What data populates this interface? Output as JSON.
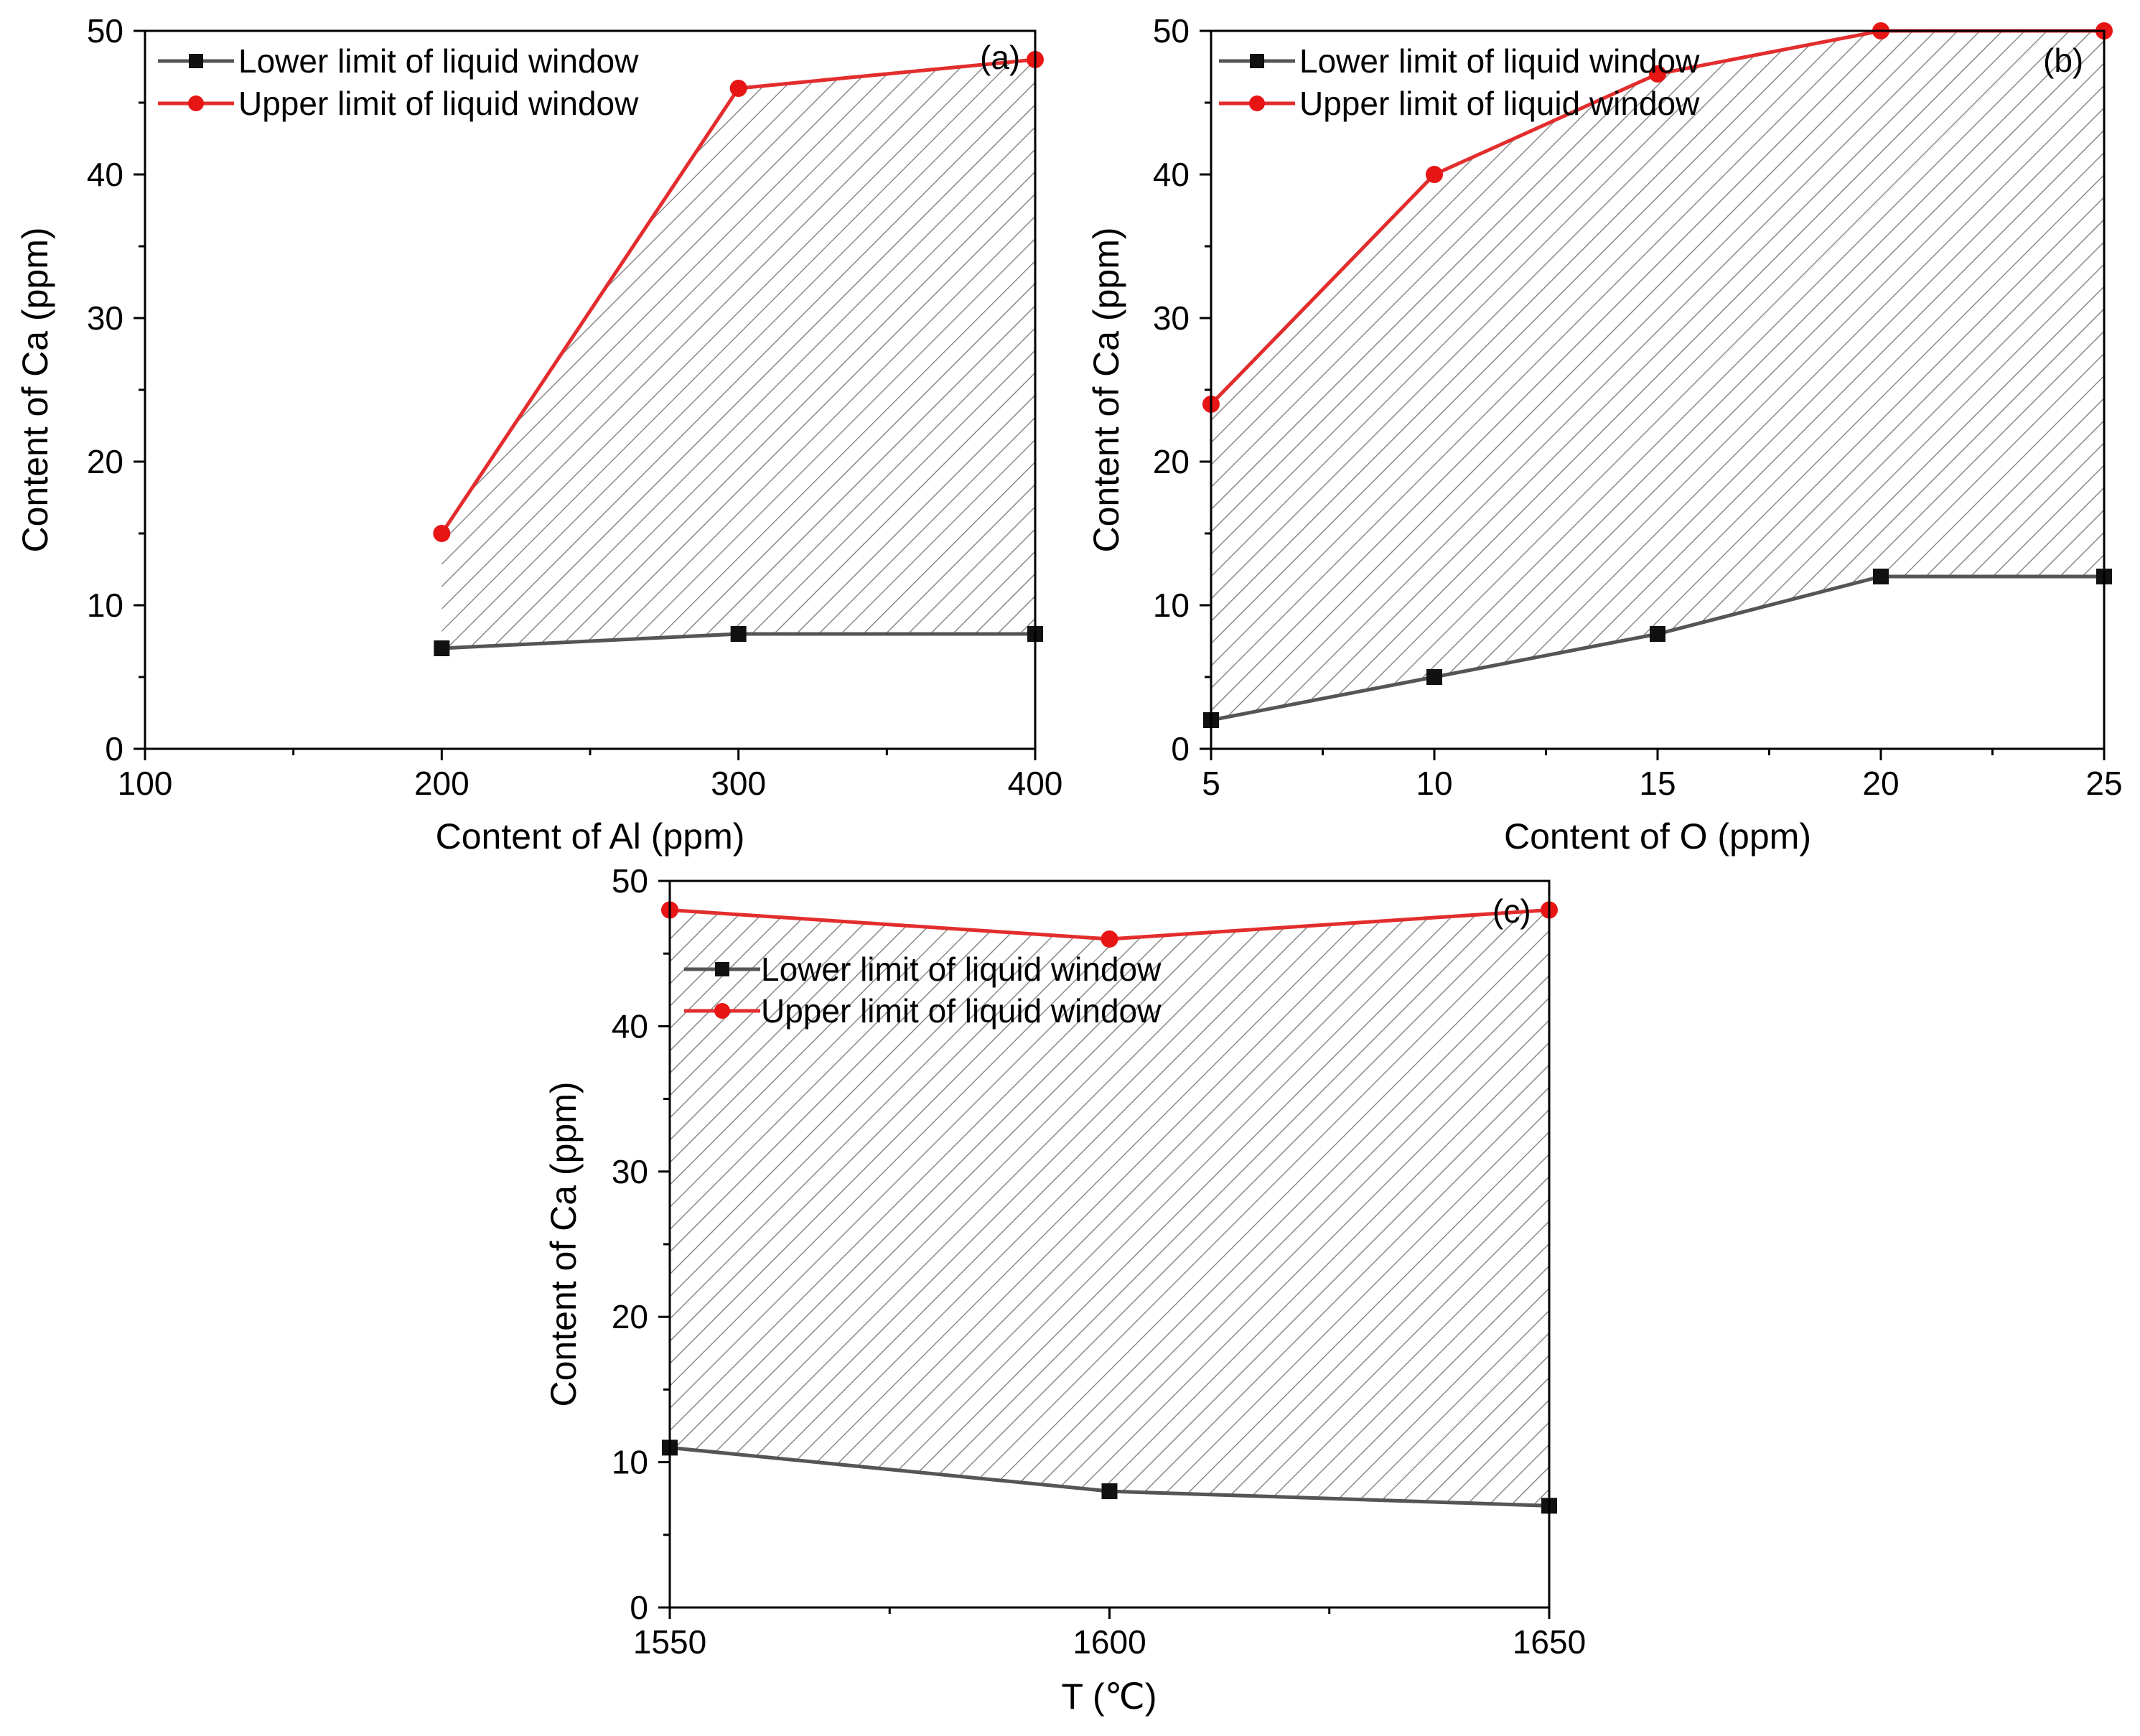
{
  "chart_data": [
    {
      "id": "a",
      "type": "line",
      "panel_label": "(a)",
      "xlabel": "Content of Al (ppm)",
      "ylabel": "Content of Ca (ppm)",
      "xlim": [
        100,
        400
      ],
      "ylim": [
        0,
        50
      ],
      "xticks": [
        100,
        200,
        300,
        400
      ],
      "yticks": [
        0,
        10,
        20,
        30,
        40,
        50
      ],
      "x": [
        200,
        300,
        400
      ],
      "series": [
        {
          "name": "Lower limit of liquid window",
          "marker": "square",
          "color": "#555555",
          "values": [
            7,
            8,
            8
          ]
        },
        {
          "name": "Upper limit of liquid window",
          "marker": "circle",
          "color": "#e32d2d",
          "values": [
            15,
            46,
            48
          ]
        }
      ],
      "fill_between": true,
      "legend": "top-left"
    },
    {
      "id": "b",
      "type": "line",
      "panel_label": "(b)",
      "xlabel": "Content of O (ppm)",
      "ylabel": "Content of Ca (ppm)",
      "xlim": [
        5,
        25
      ],
      "ylim": [
        0,
        50
      ],
      "xticks": [
        5,
        10,
        15,
        20,
        25
      ],
      "yticks": [
        0,
        10,
        20,
        30,
        40,
        50
      ],
      "x": [
        5,
        10,
        15,
        20,
        25
      ],
      "series": [
        {
          "name": "Lower limit of liquid window",
          "marker": "square",
          "color": "#555555",
          "values": [
            2,
            5,
            8,
            12,
            12
          ]
        },
        {
          "name": "Upper limit of liquid window",
          "marker": "circle",
          "color": "#e32d2d",
          "values": [
            24,
            40,
            47,
            50,
            50
          ]
        }
      ],
      "fill_between": true,
      "legend": "top-left"
    },
    {
      "id": "c",
      "type": "line",
      "panel_label": "(c)",
      "xlabel": "T (℃)",
      "ylabel": "Content of Ca (ppm)",
      "xlim": [
        1550,
        1650
      ],
      "ylim": [
        0,
        50
      ],
      "xticks": [
        1550,
        1600,
        1650
      ],
      "yticks": [
        0,
        10,
        20,
        30,
        40,
        50
      ],
      "x": [
        1550,
        1600,
        1650
      ],
      "series": [
        {
          "name": "Lower limit of liquid window",
          "marker": "square",
          "color": "#555555",
          "values": [
            11,
            8,
            7
          ]
        },
        {
          "name": "Upper limit of liquid window",
          "marker": "circle",
          "color": "#e32d2d",
          "values": [
            48,
            46,
            48
          ]
        }
      ],
      "fill_between": true,
      "legend": "top-left"
    }
  ]
}
